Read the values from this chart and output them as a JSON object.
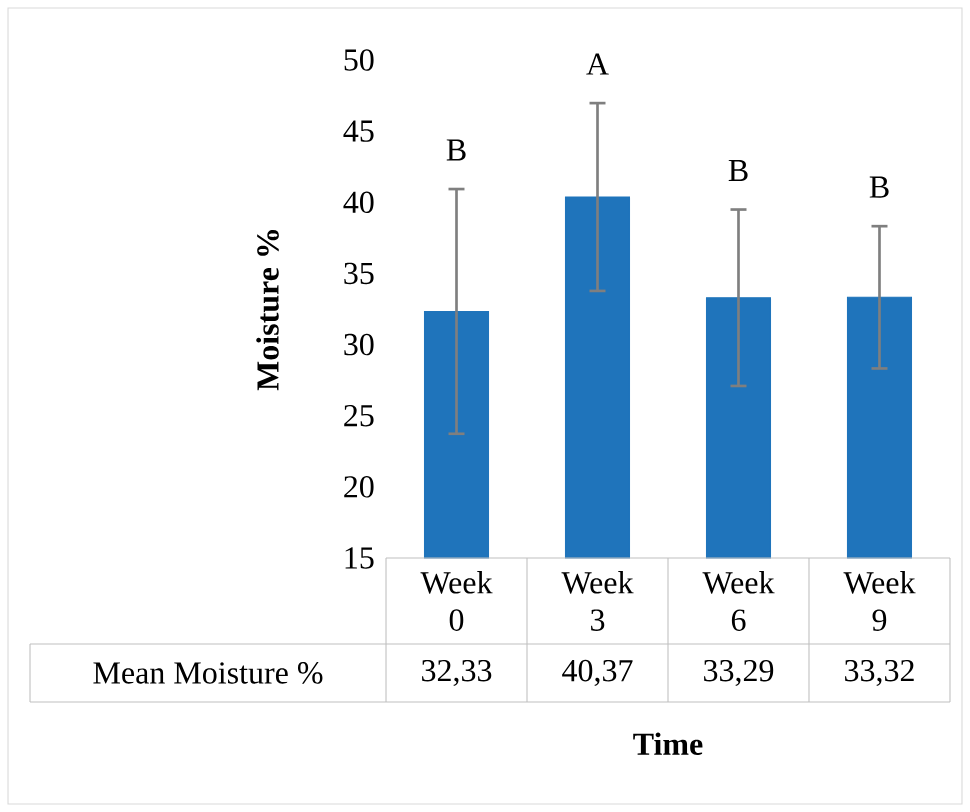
{
  "chart_data": {
    "type": "bar",
    "xlabel": "Time",
    "ylabel": "Moisture %",
    "categories": [
      "Week 0",
      "Week 3",
      "Week 6",
      "Week 9"
    ],
    "series": [
      {
        "name": "Mean Moisture %",
        "color": "#1f74bb",
        "values": [
          32.33,
          40.37,
          33.29,
          33.32
        ],
        "errors": [
          8.6,
          6.6,
          6.2,
          5.0
        ],
        "value_labels": [
          "32,33",
          "40,37",
          "33,29",
          "33,32"
        ]
      }
    ],
    "ylim": [
      15,
      50
    ],
    "yticks": [
      15,
      20,
      25,
      30,
      35,
      40,
      45,
      50
    ],
    "annotations": [
      "B",
      "A",
      "B",
      "B"
    ]
  }
}
